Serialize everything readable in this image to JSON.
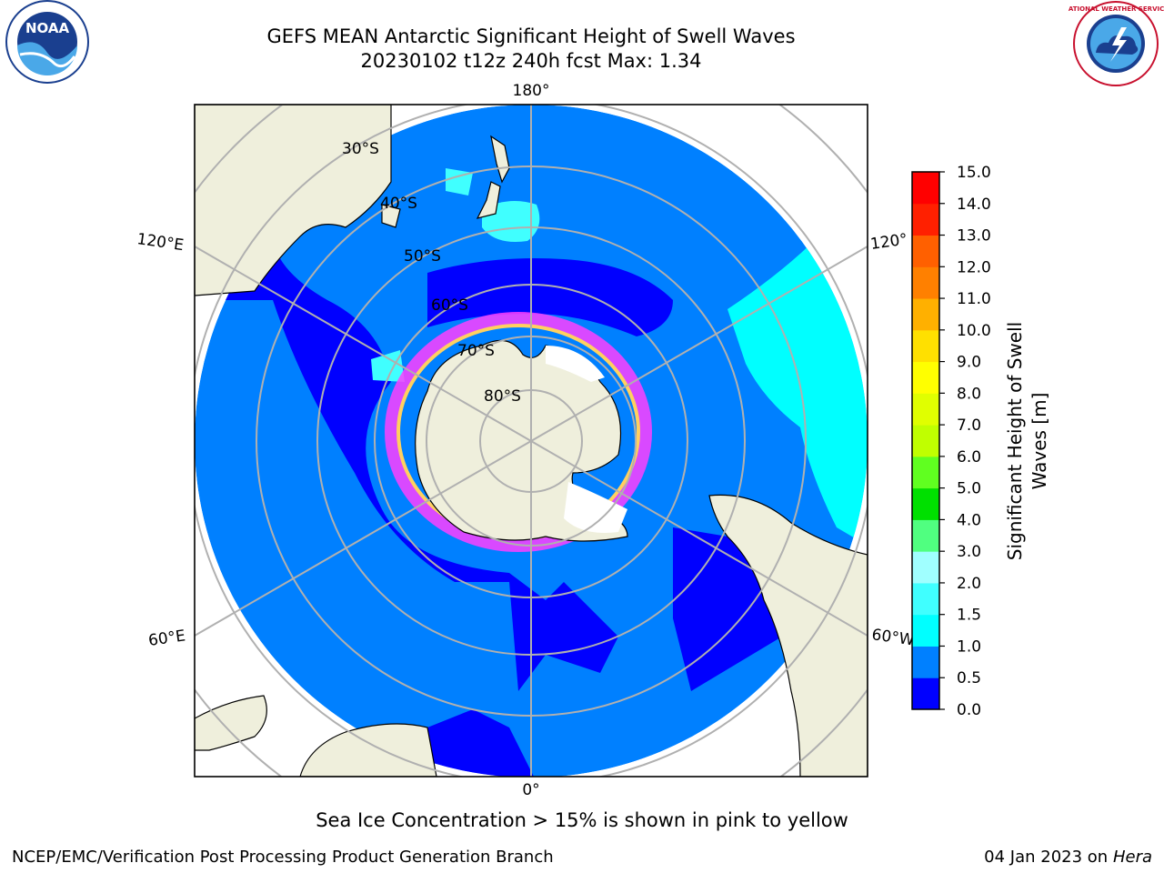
{
  "header": {
    "title": "GEFS MEAN Antarctic Significant Height of Swell Waves",
    "subtitle": "20230102 t12z 240h fcst   Max: 1.34"
  },
  "map": {
    "projection": "south-polar-stereographic",
    "meridian_labels": {
      "top": "180°",
      "bottom": "0°",
      "upper_left": "120°E",
      "upper_right": "120°",
      "lower_left": "60°E",
      "lower_right": "60°W"
    },
    "parallel_labels": [
      "30°S",
      "40°S",
      "50°S",
      "60°S",
      "70°S",
      "80°S"
    ],
    "colors": {
      "land": "#efefdc",
      "grid": "#b0b0b0",
      "ocean_0_05": "#0000ff",
      "ocean_05_1": "#0080ff",
      "ocean_1_15": "#00ffff"
    }
  },
  "colorbar": {
    "label_line1": "Significant Height of Swell",
    "label_line2": "Waves [m]",
    "ticks": [
      "0.0",
      "0.5",
      "1.0",
      "1.5",
      "2.0",
      "3.0",
      "4.0",
      "5.0",
      "6.0",
      "7.0",
      "8.0",
      "9.0",
      "10.0",
      "11.0",
      "12.0",
      "13.0",
      "14.0",
      "15.0"
    ],
    "colors": [
      "#0000ff",
      "#0080ff",
      "#00ffff",
      "#40ffff",
      "#a0ffff",
      "#50ff80",
      "#00e000",
      "#60ff20",
      "#c0ff00",
      "#e0ff00",
      "#ffff00",
      "#ffe000",
      "#ffb000",
      "#ff8000",
      "#ff6000",
      "#ff2000",
      "#ff0000"
    ]
  },
  "note": "Sea Ice Concentration > 15% is shown in pink to yellow",
  "footer": {
    "left": "NCEP/EMC/Verification Post Processing Product Generation Branch",
    "right_prefix": "04 Jan 2023 on ",
    "right_host": "Hera"
  },
  "logos": {
    "left": "noara-logo",
    "right": "national-weather-service-logo",
    "noaa_text": "NOAA",
    "nws_text": "NATIONAL WEATHER SERVICE"
  }
}
